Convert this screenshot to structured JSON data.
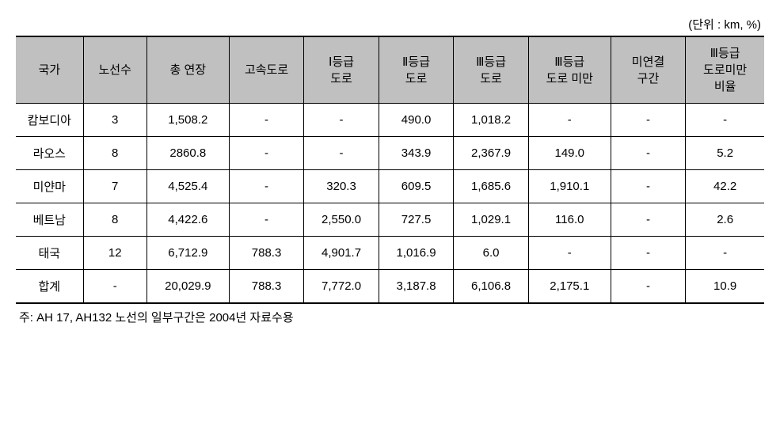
{
  "unit_label": "(단위 : km, %)",
  "table": {
    "headers": [
      "국가",
      "노선수",
      "총 연장",
      "고속도로",
      "Ⅰ등급\n도로",
      "Ⅱ등급\n도로",
      "Ⅲ등급\n도로",
      "Ⅲ등급\n도로 미만",
      "미연결\n구간",
      "Ⅲ등급\n도로미만\n비율"
    ],
    "rows": [
      [
        "캄보디아",
        "3",
        "1,508.2",
        "-",
        "-",
        "490.0",
        "1,018.2",
        "-",
        "-",
        "-"
      ],
      [
        "라오스",
        "8",
        "2860.8",
        "-",
        "-",
        "343.9",
        "2,367.9",
        "149.0",
        "-",
        "5.2"
      ],
      [
        "미얀마",
        "7",
        "4,525.4",
        "-",
        "320.3",
        "609.5",
        "1,685.6",
        "1,910.1",
        "-",
        "42.2"
      ],
      [
        "베트남",
        "8",
        "4,422.6",
        "-",
        "2,550.0",
        "727.5",
        "1,029.1",
        "116.0",
        "-",
        "2.6"
      ],
      [
        "태국",
        "12",
        "6,712.9",
        "788.3",
        "4,901.7",
        "1,016.9",
        "6.0",
        "-",
        "-",
        "-"
      ],
      [
        "합계",
        "-",
        "20,029.9",
        "788.3",
        "7,772.0",
        "3,187.8",
        "6,106.8",
        "2,175.1",
        "-",
        "10.9"
      ]
    ]
  },
  "footnote": "주: AH 17, AH132 노선의 일부구간은 2004년 자료수용",
  "colors": {
    "header_bg": "#c0c0c0",
    "border": "#000000",
    "background": "#ffffff"
  }
}
